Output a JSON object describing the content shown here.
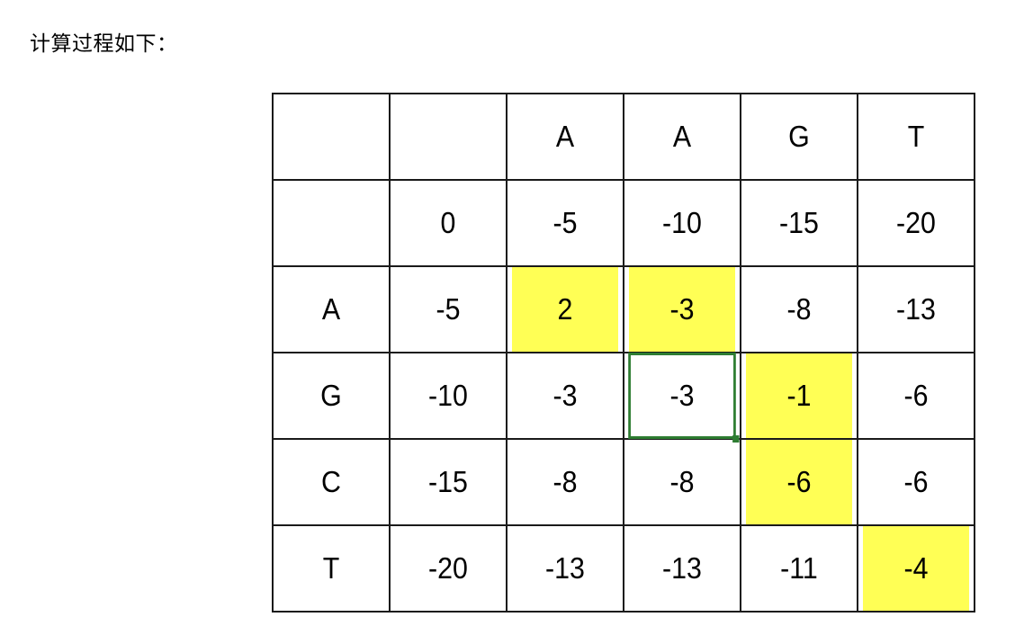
{
  "heading": "计算过程如下：",
  "colors": {
    "highlight": "#ffff55",
    "selection": "#2e7d32",
    "grid_line": "#1a1a1a"
  },
  "table": {
    "rows": [
      [
        "",
        "",
        "A",
        "A",
        "G",
        "T"
      ],
      [
        "",
        "0",
        "-5",
        "-10",
        "-15",
        "-20"
      ],
      [
        "A",
        "-5",
        "2",
        "-3",
        "-8",
        "-13"
      ],
      [
        "G",
        "-10",
        "-3",
        "-3",
        "-1",
        "-6"
      ],
      [
        "C",
        "-15",
        "-8",
        "-8",
        "-6",
        "-6"
      ],
      [
        "T",
        "-20",
        "-13",
        "-13",
        "-11",
        "-4"
      ]
    ],
    "highlighted_cells": [
      [
        2,
        2
      ],
      [
        2,
        3
      ],
      [
        3,
        4
      ],
      [
        4,
        4
      ],
      [
        5,
        5
      ]
    ],
    "selected_cell": [
      3,
      3
    ]
  }
}
